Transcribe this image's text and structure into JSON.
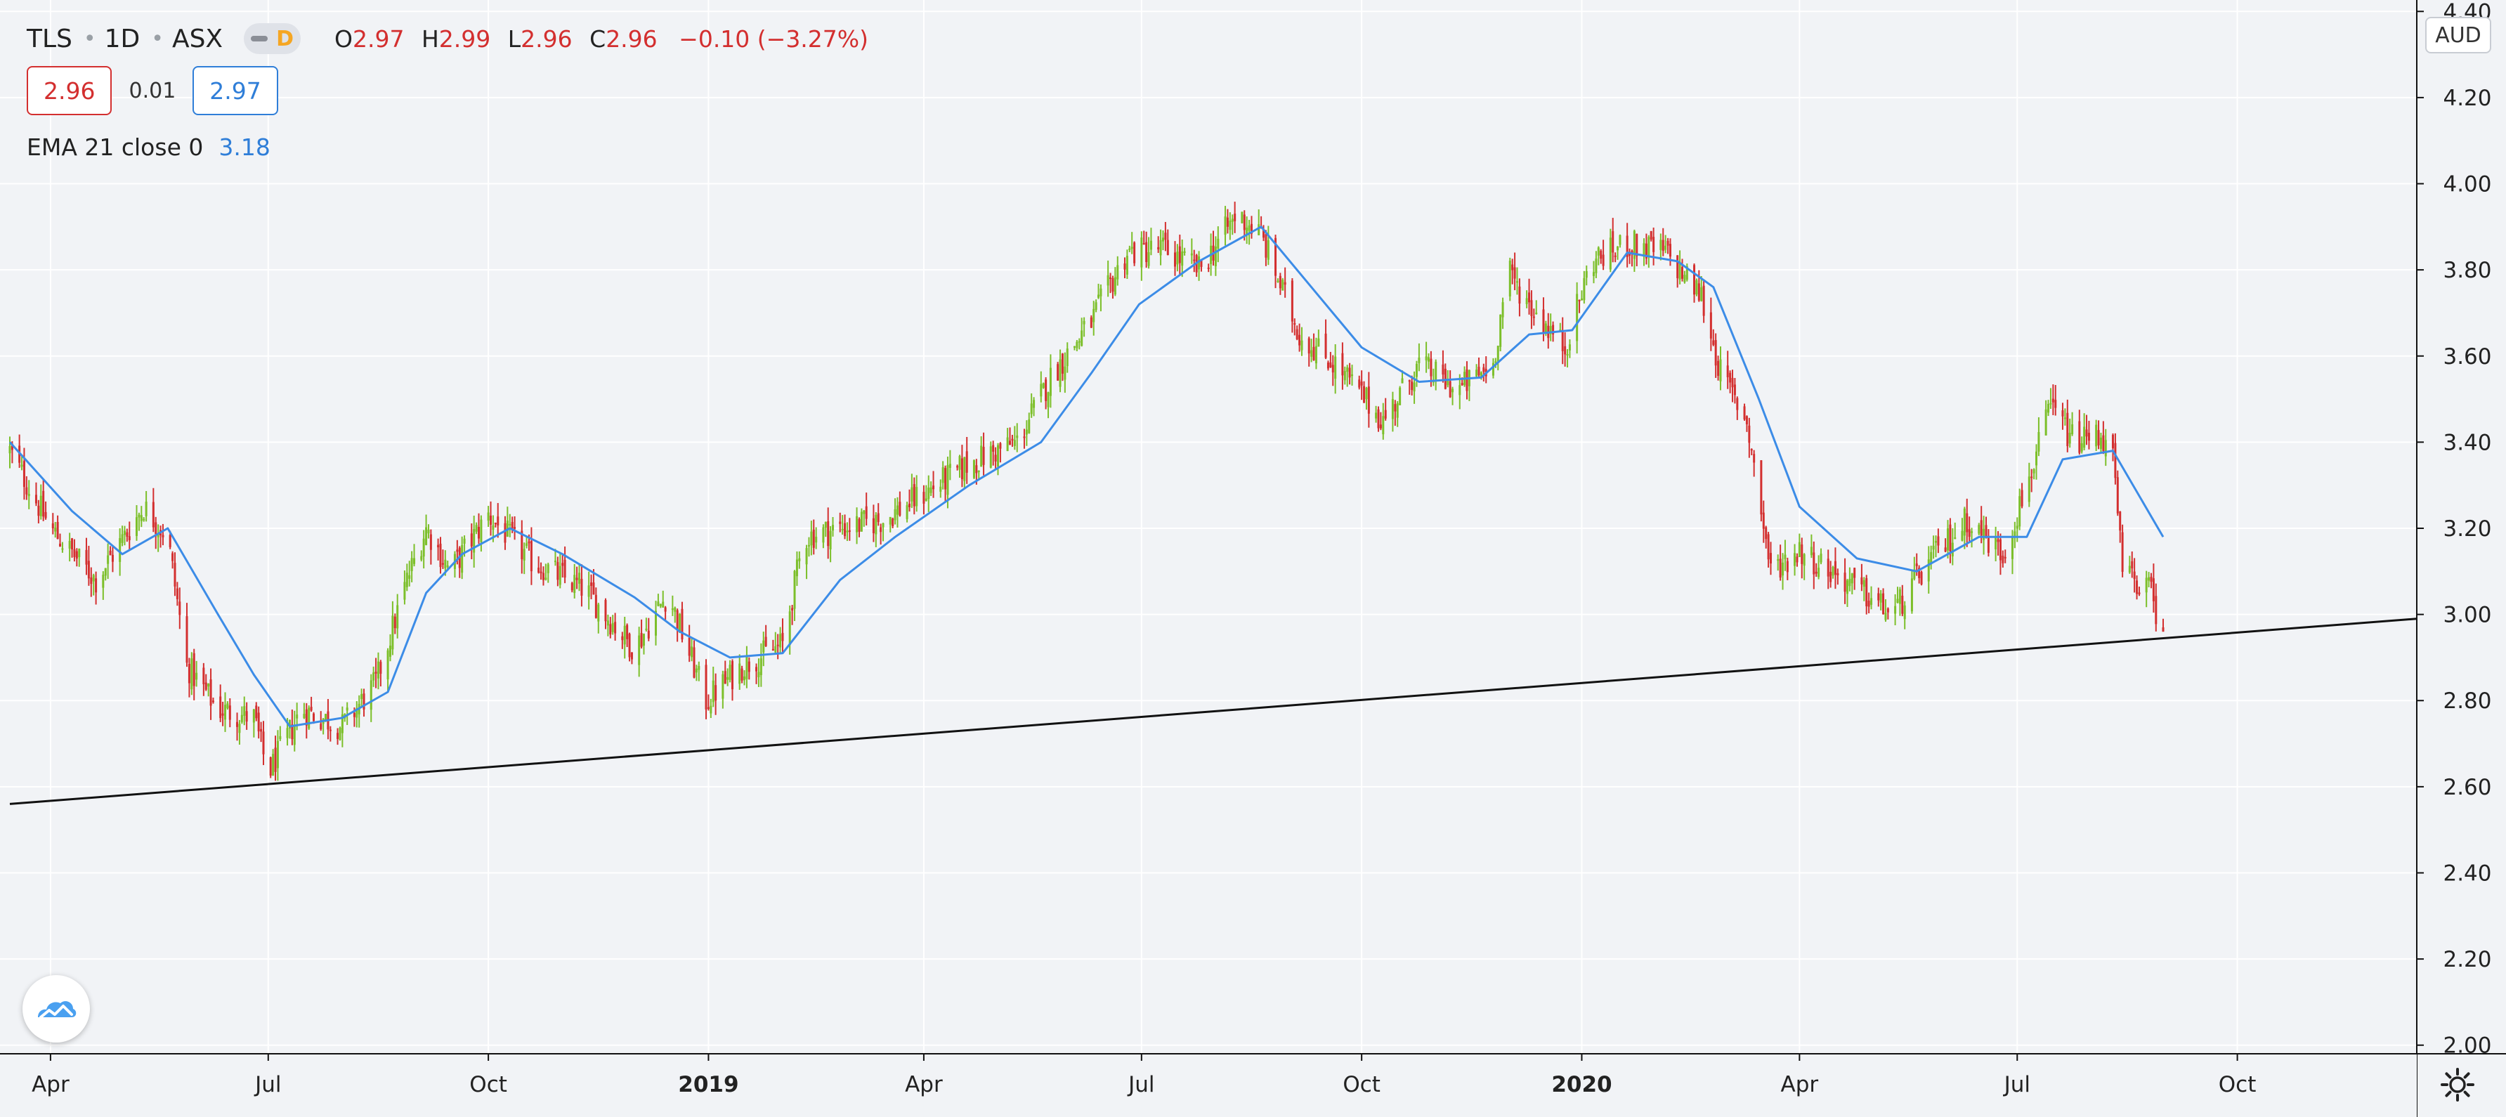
{
  "header": {
    "symbol": "TLS",
    "interval": "1D",
    "exchange": "ASX",
    "status_letter": "D",
    "ohlc": {
      "o_label": "O",
      "o_value": "2.97",
      "h_label": "H",
      "h_value": "2.99",
      "l_label": "L",
      "l_value": "2.96",
      "c_label": "C",
      "c_value": "2.96",
      "change": "−0.10 (−3.27%)"
    },
    "bid": "2.96",
    "spread": "0.01",
    "ask": "2.97",
    "ema_label": "EMA 21 close 0",
    "ema_value": "3.18"
  },
  "currency": "AUD",
  "colors": {
    "up": "#7cbf2a",
    "down": "#d32f2f",
    "ema": "#3c8ce7",
    "trendline": "#111111",
    "background": "#f1f3f6",
    "grid": "#ffffff"
  },
  "icons": {
    "logo": "tradingview-cloud-icon",
    "settings": "gear-icon",
    "status": "delayed-data-indicator"
  },
  "chart_data": {
    "type": "candlestick",
    "symbol": "TLS",
    "interval": "1D",
    "x_start": "2018-03-15",
    "x_end": "2020-12-15",
    "ylim": [
      1.98,
      4.42
    ],
    "y_ticks": [
      "2.00",
      "2.20",
      "2.40",
      "2.60",
      "2.80",
      "3.00",
      "3.20",
      "3.40",
      "3.60",
      "3.80",
      "4.00",
      "4.20",
      "4.40"
    ],
    "x_ticks": [
      {
        "label": "Apr",
        "date": "2018-04-01",
        "bold": false
      },
      {
        "label": "Jul",
        "date": "2018-07-01",
        "bold": false
      },
      {
        "label": "Oct",
        "date": "2018-10-01",
        "bold": false
      },
      {
        "label": "2019",
        "date": "2019-01-01",
        "bold": true
      },
      {
        "label": "Apr",
        "date": "2019-04-01",
        "bold": false
      },
      {
        "label": "Jul",
        "date": "2019-07-01",
        "bold": false
      },
      {
        "label": "Oct",
        "date": "2019-10-01",
        "bold": false
      },
      {
        "label": "2020",
        "date": "2020-01-01",
        "bold": true
      },
      {
        "label": "Apr",
        "date": "2020-04-01",
        "bold": false
      },
      {
        "label": "Jul",
        "date": "2020-07-01",
        "bold": false
      },
      {
        "label": "Oct",
        "date": "2020-10-01",
        "bold": false
      }
    ],
    "close_path": [
      [
        "2018-03-15",
        3.38
      ],
      [
        "2018-04-01",
        3.2
      ],
      [
        "2018-04-20",
        3.08
      ],
      [
        "2018-05-10",
        3.25
      ],
      [
        "2018-05-20",
        3.18
      ],
      [
        "2018-05-28",
        2.88
      ],
      [
        "2018-06-10",
        2.78
      ],
      [
        "2018-06-25",
        2.76
      ],
      [
        "2018-07-01",
        2.63
      ],
      [
        "2018-07-15",
        2.78
      ],
      [
        "2018-08-01",
        2.74
      ],
      [
        "2018-08-15",
        2.84
      ],
      [
        "2018-08-28",
        3.08
      ],
      [
        "2018-09-05",
        3.2
      ],
      [
        "2018-09-15",
        3.1
      ],
      [
        "2018-10-01",
        3.23
      ],
      [
        "2018-10-20",
        3.12
      ],
      [
        "2018-11-10",
        3.06
      ],
      [
        "2018-12-01",
        2.92
      ],
      [
        "2018-12-15",
        3.05
      ],
      [
        "2018-12-31",
        2.8
      ],
      [
        "2019-01-15",
        2.88
      ],
      [
        "2019-02-01",
        2.93
      ],
      [
        "2019-02-10",
        3.18
      ],
      [
        "2019-02-25",
        3.2
      ],
      [
        "2019-03-15",
        3.22
      ],
      [
        "2019-04-01",
        3.28
      ],
      [
        "2019-04-20",
        3.35
      ],
      [
        "2019-05-10",
        3.4
      ],
      [
        "2019-05-25",
        3.56
      ],
      [
        "2019-06-10",
        3.68
      ],
      [
        "2019-06-25",
        3.84
      ],
      [
        "2019-07-10",
        3.85
      ],
      [
        "2019-07-25",
        3.8
      ],
      [
        "2019-08-10",
        3.93
      ],
      [
        "2019-08-20",
        3.88
      ],
      [
        "2019-09-05",
        3.65
      ],
      [
        "2019-09-20",
        3.58
      ],
      [
        "2019-10-10",
        3.45
      ],
      [
        "2019-10-25",
        3.58
      ],
      [
        "2019-11-10",
        3.52
      ],
      [
        "2019-11-25",
        3.58
      ],
      [
        "2019-12-01",
        3.8
      ],
      [
        "2019-12-10",
        3.72
      ],
      [
        "2019-12-25",
        3.62
      ],
      [
        "2020-01-05",
        3.82
      ],
      [
        "2020-01-20",
        3.86
      ],
      [
        "2020-02-05",
        3.84
      ],
      [
        "2020-02-20",
        3.74
      ],
      [
        "2020-02-28",
        3.56
      ],
      [
        "2020-03-10",
        3.45
      ],
      [
        "2020-03-20",
        3.1
      ],
      [
        "2020-04-01",
        3.15
      ],
      [
        "2020-04-20",
        3.08
      ],
      [
        "2020-05-10",
        3.0
      ],
      [
        "2020-05-25",
        3.12
      ],
      [
        "2020-06-10",
        3.22
      ],
      [
        "2020-06-25",
        3.14
      ],
      [
        "2020-07-05",
        3.3
      ],
      [
        "2020-07-15",
        3.48
      ],
      [
        "2020-07-25",
        3.4
      ],
      [
        "2020-08-05",
        3.42
      ],
      [
        "2020-08-10",
        3.36
      ],
      [
        "2020-08-14",
        3.1
      ],
      [
        "2020-08-25",
        3.06
      ],
      [
        "2020-08-31",
        2.96
      ]
    ],
    "ema_series": {
      "name": "EMA 21 close 0",
      "points": [
        [
          "2018-03-15",
          3.4
        ],
        [
          "2018-04-10",
          3.24
        ],
        [
          "2018-05-01",
          3.14
        ],
        [
          "2018-05-20",
          3.2
        ],
        [
          "2018-06-10",
          3.0
        ],
        [
          "2018-06-25",
          2.86
        ],
        [
          "2018-07-10",
          2.74
        ],
        [
          "2018-08-01",
          2.76
        ],
        [
          "2018-08-20",
          2.82
        ],
        [
          "2018-09-05",
          3.05
        ],
        [
          "2018-09-20",
          3.14
        ],
        [
          "2018-10-10",
          3.2
        ],
        [
          "2018-11-01",
          3.14
        ],
        [
          "2018-12-01",
          3.04
        ],
        [
          "2018-12-20",
          2.96
        ],
        [
          "2019-01-10",
          2.9
        ],
        [
          "2019-02-01",
          2.91
        ],
        [
          "2019-02-25",
          3.08
        ],
        [
          "2019-03-20",
          3.18
        ],
        [
          "2019-04-20",
          3.3
        ],
        [
          "2019-05-20",
          3.4
        ],
        [
          "2019-06-10",
          3.56
        ],
        [
          "2019-06-30",
          3.72
        ],
        [
          "2019-07-25",
          3.82
        ],
        [
          "2019-08-20",
          3.9
        ],
        [
          "2019-09-10",
          3.76
        ],
        [
          "2019-10-01",
          3.62
        ],
        [
          "2019-10-25",
          3.54
        ],
        [
          "2019-11-20",
          3.55
        ],
        [
          "2019-12-10",
          3.65
        ],
        [
          "2019-12-28",
          3.66
        ],
        [
          "2020-01-20",
          3.84
        ],
        [
          "2020-02-10",
          3.82
        ],
        [
          "2020-02-25",
          3.76
        ],
        [
          "2020-03-15",
          3.5
        ],
        [
          "2020-04-01",
          3.25
        ],
        [
          "2020-04-25",
          3.13
        ],
        [
          "2020-05-20",
          3.1
        ],
        [
          "2020-06-15",
          3.18
        ],
        [
          "2020-07-05",
          3.18
        ],
        [
          "2020-07-20",
          3.36
        ],
        [
          "2020-08-10",
          3.38
        ],
        [
          "2020-08-31",
          3.18
        ]
      ]
    },
    "trendline": {
      "start": [
        "2018-03-15",
        2.56
      ],
      "end": [
        "2020-12-15",
        2.99
      ]
    },
    "last_bar": {
      "date": "2020-08-31",
      "open": 2.97,
      "high": 2.99,
      "low": 2.96,
      "close": 2.96
    }
  }
}
